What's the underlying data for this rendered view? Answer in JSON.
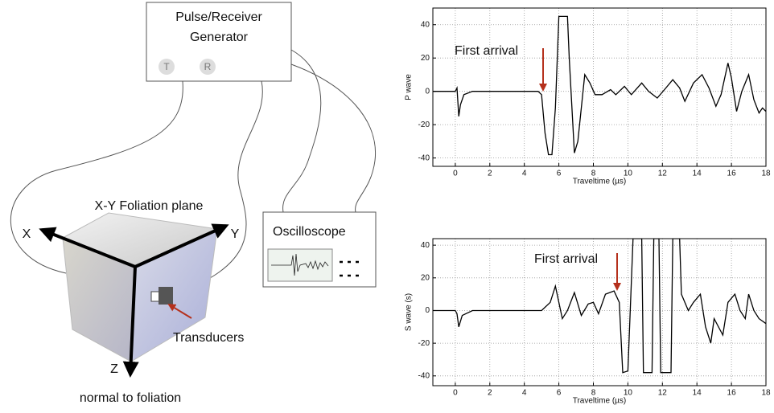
{
  "diagram": {
    "generator": [
      "Pulse/Receiver",
      "Generator"
    ],
    "ports": [
      "T",
      "R"
    ],
    "oscilloscope": "Oscilloscope",
    "foliation_plane": "X-Y Foliation plane",
    "axes": [
      "X",
      "Y",
      "Z"
    ],
    "z_note": "normal to foliation",
    "transducers": "Transducers"
  },
  "chart_data": [
    {
      "type": "line",
      "ylabel": "P wave",
      "xlabel": "Traveltime (µs)",
      "annotation": "First arrival",
      "color": "#000000",
      "grid": true,
      "xlim": [
        -1.3,
        18
      ],
      "ylim": [
        -45,
        50
      ],
      "xticks": [
        0,
        2,
        4,
        6,
        8,
        10,
        12,
        14,
        16,
        18
      ],
      "yticks": [
        -40,
        -20,
        0,
        20,
        40
      ],
      "x": [
        -1.3,
        0,
        0.1,
        0.2,
        0.3,
        0.5,
        1,
        2,
        3,
        4,
        4.8,
        5.0,
        5.2,
        5.4,
        5.6,
        5.8,
        6.0,
        6.5,
        6.6,
        6.9,
        7.1,
        7.5,
        7.8,
        8.1,
        8.5,
        9,
        9.3,
        9.8,
        10.2,
        10.8,
        11.2,
        11.7,
        12.2,
        12.6,
        13.0,
        13.3,
        13.8,
        14.3,
        14.7,
        15.1,
        15.4,
        15.8,
        16.0,
        16.3,
        16.6,
        17.0,
        17.3,
        17.6,
        17.8,
        18
      ],
      "values": [
        0,
        0,
        2,
        -15,
        -8,
        -2,
        0,
        0,
        0,
        0,
        0,
        -2,
        -25,
        -38,
        -38,
        -10,
        45,
        45,
        20,
        -37,
        -30,
        10,
        5,
        -2,
        -2,
        1,
        -2,
        3,
        -2,
        5,
        0,
        -4,
        2,
        7,
        2,
        -6,
        5,
        10,
        2,
        -9,
        -2,
        17,
        8,
        -12,
        0,
        10,
        -5,
        -13,
        -10,
        -12
      ]
    },
    {
      "type": "line",
      "ylabel": "S wave (s)",
      "xlabel": "Traveltime (µs)",
      "annotation": "First arrival",
      "color": "#000000",
      "grid": true,
      "xlim": [
        -1.3,
        18
      ],
      "ylim": [
        -46,
        44
      ],
      "xticks": [
        0,
        2,
        4,
        6,
        8,
        10,
        12,
        14,
        16,
        18
      ],
      "yticks": [
        -40,
        -20,
        0,
        20,
        40
      ],
      "x": [
        -1.3,
        0,
        0.1,
        0.2,
        0.4,
        1,
        5,
        5.5,
        5.8,
        6.2,
        6.5,
        6.9,
        7.3,
        7.7,
        8.0,
        8.3,
        8.7,
        9.2,
        9.5,
        9.7,
        10.0,
        10.3,
        10.8,
        10.9,
        11.4,
        11.5,
        11.8,
        11.9,
        12.5,
        12.6,
        13.0,
        13.1,
        13.5,
        13.8,
        14.2,
        14.5,
        14.8,
        15.0,
        15.5,
        15.8,
        16.2,
        16.5,
        16.8,
        17.0,
        17.3,
        17.6,
        18
      ],
      "values": [
        0,
        0,
        -2,
        -10,
        -3,
        0,
        0,
        5,
        15,
        -5,
        0,
        11,
        -3,
        4,
        5,
        -2,
        10,
        12,
        5,
        -38,
        -37,
        44,
        44,
        -38,
        -38,
        44,
        44,
        -38,
        -38,
        44,
        44,
        10,
        0,
        5,
        10,
        -10,
        -20,
        -5,
        -15,
        5,
        10,
        0,
        -5,
        10,
        0,
        -5,
        -8
      ]
    }
  ]
}
